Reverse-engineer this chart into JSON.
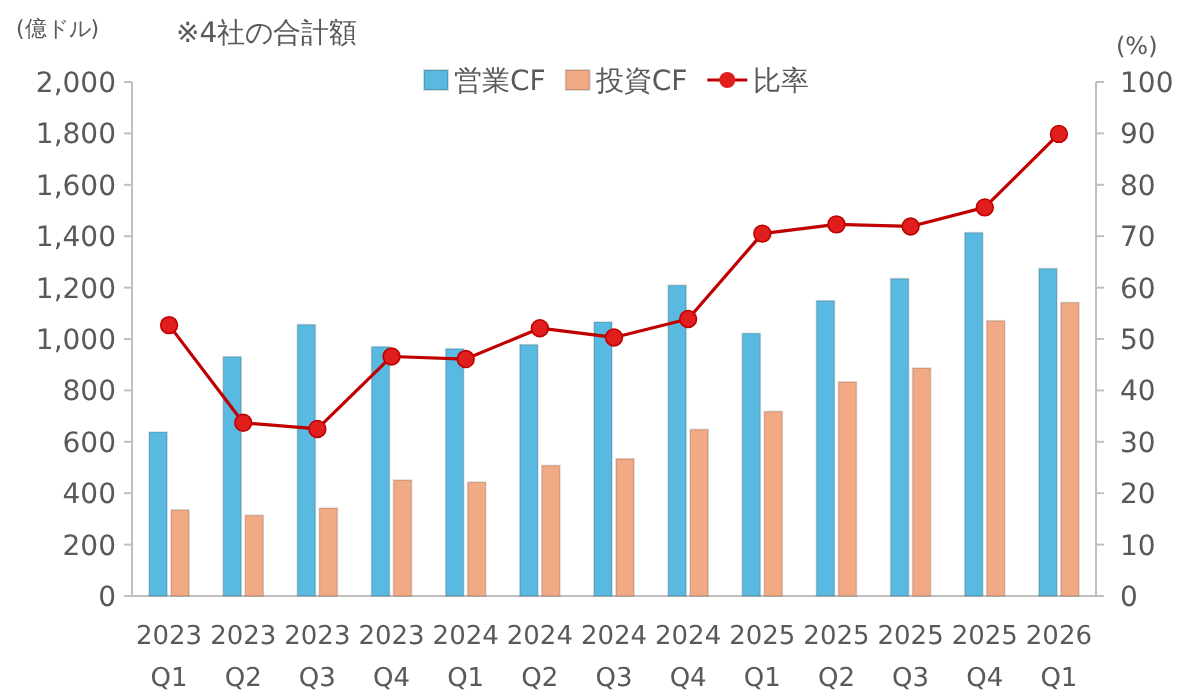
{
  "chart_data": {
    "type": "bar",
    "annotations": [
      "※4社の合計額"
    ],
    "ylabel": "(億ドル)",
    "y2label": "(%)",
    "categories": [
      "2023 Q1",
      "2023 Q2",
      "2023 Q3",
      "2023 Q4",
      "2024 Q1",
      "2024 Q2",
      "2024 Q3",
      "2024 Q4",
      "2025 Q1",
      "2025 Q2",
      "2025 Q3",
      "2025 Q4",
      "2026 Q1"
    ],
    "series": [
      {
        "name": "営業CF",
        "color": "#5ab9e0",
        "values": [
          638,
          931,
          1056,
          970,
          962,
          978,
          1066,
          1209,
          1022,
          1149,
          1235,
          1414,
          1274
        ]
      },
      {
        "name": "投資CF",
        "color": "#f2aa84",
        "values": [
          335,
          314,
          342,
          451,
          443,
          508,
          534,
          648,
          718,
          833,
          887,
          1071,
          1142
        ]
      },
      {
        "name": "比率",
        "type": "line",
        "axis": "y2",
        "marker": "circle",
        "color": "#c00000",
        "values": [
          52.7,
          33.7,
          32.5,
          46.6,
          46.1,
          52.1,
          50.3,
          53.9,
          70.5,
          72.3,
          71.9,
          75.6,
          89.9
        ]
      }
    ],
    "ylim": [
      0,
      2000
    ],
    "yticks": [
      0,
      200,
      400,
      600,
      800,
      {
        "value": 1000,
        "label": "1,000"
      },
      {
        "value": 1200,
        "label": "1,200"
      },
      {
        "value": 1400,
        "label": "1,400"
      },
      {
        "value": 1600,
        "label": "1,600"
      },
      {
        "value": 1800,
        "label": "1,800"
      },
      {
        "value": 2000,
        "label": "2,000"
      }
    ],
    "y2lim": [
      0,
      100
    ],
    "y2ticks": [
      0,
      10,
      20,
      30,
      40,
      50,
      60,
      70,
      80,
      90,
      100
    ],
    "legend": "top",
    "grid": false
  }
}
